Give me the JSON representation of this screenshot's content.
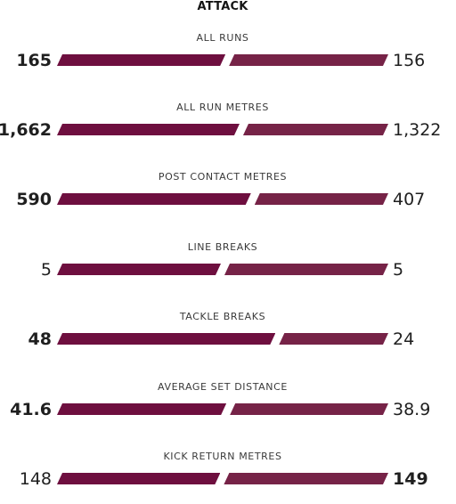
{
  "section_title": "ATTACK",
  "colors": {
    "home_bar": "#6e0f3f",
    "away_bar": "#762347"
  },
  "stats": [
    {
      "label": "ALL RUNS",
      "home": "165",
      "away": "156",
      "home_value": 165,
      "away_value": 156,
      "leader": "home"
    },
    {
      "label": "ALL RUN METRES",
      "home": "1,662",
      "away": "1,322",
      "home_value": 1662,
      "away_value": 1322,
      "leader": "home"
    },
    {
      "label": "POST CONTACT METRES",
      "home": "590",
      "away": "407",
      "home_value": 590,
      "away_value": 407,
      "leader": "home"
    },
    {
      "label": "LINE BREAKS",
      "home": "5",
      "away": "5",
      "home_value": 5,
      "away_value": 5,
      "leader": "none"
    },
    {
      "label": "TACKLE BREAKS",
      "home": "48",
      "away": "24",
      "home_value": 48,
      "away_value": 24,
      "leader": "home"
    },
    {
      "label": "AVERAGE SET DISTANCE",
      "home": "41.6",
      "away": "38.9",
      "home_value": 41.6,
      "away_value": 38.9,
      "leader": "home"
    },
    {
      "label": "KICK RETURN METRES",
      "home": "148",
      "away": "149",
      "home_value": 148,
      "away_value": 149,
      "leader": "away"
    }
  ]
}
